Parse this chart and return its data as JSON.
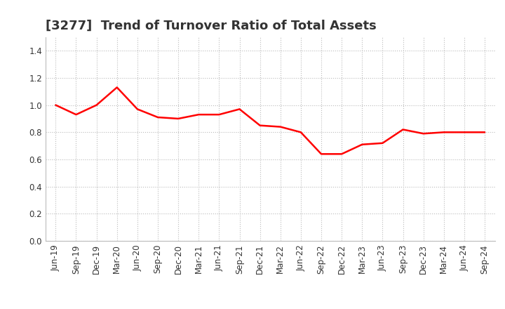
{
  "title": "[3277]  Trend of Turnover Ratio of Total Assets",
  "x_labels": [
    "Jun-19",
    "Sep-19",
    "Dec-19",
    "Mar-20",
    "Jun-20",
    "Sep-20",
    "Dec-20",
    "Mar-21",
    "Jun-21",
    "Sep-21",
    "Dec-21",
    "Mar-22",
    "Jun-22",
    "Sep-22",
    "Dec-22",
    "Mar-23",
    "Jun-23",
    "Sep-23",
    "Dec-23",
    "Mar-24",
    "Jun-24",
    "Sep-24"
  ],
  "y_values": [
    1.0,
    0.93,
    1.0,
    1.13,
    0.97,
    0.91,
    0.9,
    0.93,
    0.93,
    0.97,
    0.85,
    0.84,
    0.8,
    0.64,
    0.64,
    0.71,
    0.72,
    0.82,
    0.79,
    0.8,
    0.8,
    0.8
  ],
  "line_color": "#FF0000",
  "line_width": 1.8,
  "ylim": [
    0.0,
    1.5
  ],
  "yticks": [
    0.0,
    0.2,
    0.4,
    0.6,
    0.8,
    1.0,
    1.2,
    1.4
  ],
  "grid_color": "#bbbbbb",
  "grid_style": "dotted",
  "background_color": "#ffffff",
  "title_fontsize": 13,
  "tick_fontsize": 8.5,
  "title_color": "#333333",
  "tick_color": "#333333"
}
